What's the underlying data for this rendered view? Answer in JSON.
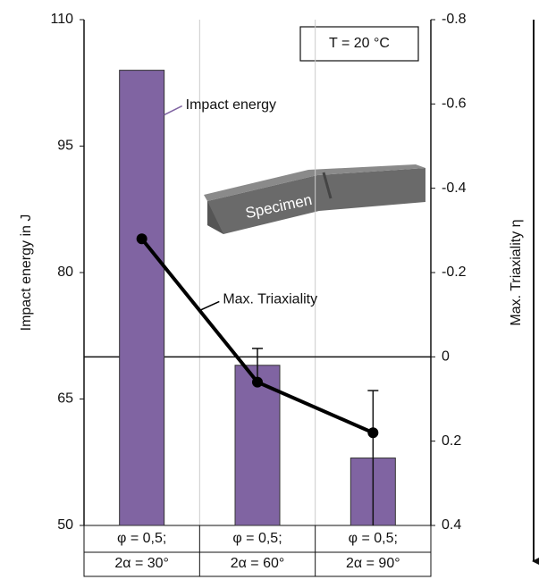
{
  "chart_data": {
    "type": "bar",
    "ylabel": "Impact energy in J",
    "y2label": "Max. Triaxiality η",
    "categories": [
      [
        "φ = 0,5;",
        "2α = 30°"
      ],
      [
        "φ = 0,5;",
        "2α = 60°"
      ],
      [
        "φ = 0,5;",
        "2α = 90°"
      ]
    ],
    "series": [
      {
        "name": "Impact energy",
        "type": "bar",
        "color": "#8064a2",
        "values": [
          104,
          69,
          58
        ],
        "errors": [
          null,
          2,
          8
        ]
      },
      {
        "name": "Max. Triaxiality",
        "type": "line",
        "color": "#000000",
        "axis": "y2",
        "values": [
          -0.28,
          0.06,
          0.18
        ]
      }
    ],
    "ylim": [
      50,
      110
    ],
    "yticks": [
      50,
      65,
      80,
      95,
      110
    ],
    "y2lim": [
      0.4,
      -0.8
    ],
    "y2ticks": [
      -0.8,
      -0.6,
      -0.4,
      -0.2,
      0,
      0.2,
      0.4
    ],
    "annotations": [
      "T = 20 °C",
      "Specimen"
    ],
    "grid": true
  }
}
